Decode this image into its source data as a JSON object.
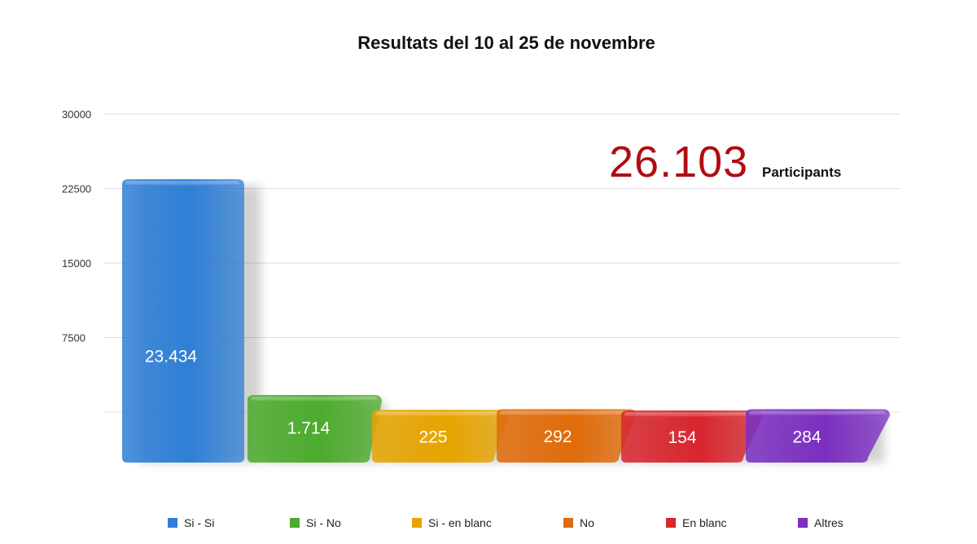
{
  "chart_data": {
    "type": "bar",
    "title": "Resultats del 10 al 25 de novembre",
    "xlabel": "",
    "ylabel": "",
    "ylim": [
      0,
      30000
    ],
    "yticks": [
      "7500",
      "15000",
      "22500",
      "30000"
    ],
    "categories": [
      "Si - Si",
      "Si - No",
      "Si - en blanc",
      "No",
      "En blanc",
      "Altres"
    ],
    "values": [
      23434,
      1714,
      225,
      292,
      154,
      284
    ],
    "data_labels": [
      "23.434",
      "1.714",
      "225",
      "292",
      "154",
      "284"
    ],
    "colors": [
      "#2f7fd6",
      "#4cab2c",
      "#e6a400",
      "#e06b0a",
      "#d8262f",
      "#7b2fc0"
    ],
    "grid": true,
    "legend": "bottom"
  },
  "annotation": {
    "number": "26.103",
    "label": "Participants"
  }
}
